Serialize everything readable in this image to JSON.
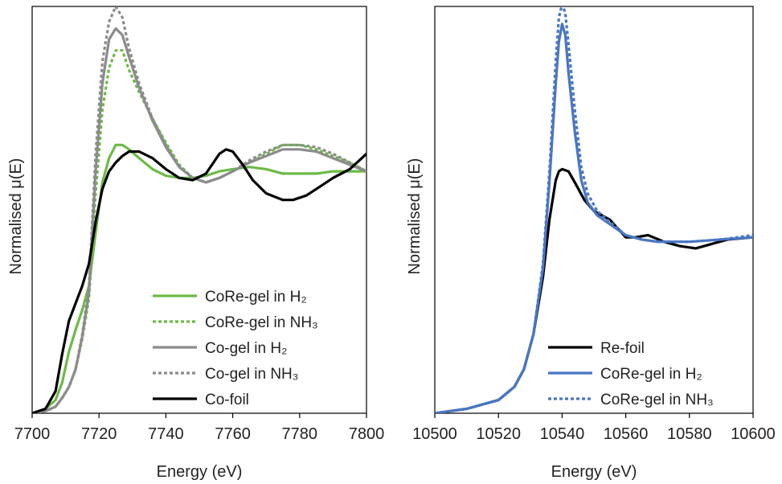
{
  "chart_data": [
    {
      "type": "line",
      "xlabel": "Energy (eV)",
      "ylabel": "Normalised μ(E)",
      "xlim": [
        7700,
        7800
      ],
      "ylim": [
        0,
        1.85
      ],
      "xticks": [
        "7700",
        "7720",
        "7740",
        "7760",
        "7780",
        "7800"
      ],
      "yticks_shown": false,
      "grid": false,
      "legend_position": "bottom-right",
      "series": [
        {
          "name": "CoRe-gel in H₂",
          "color": "#6cbb45",
          "style": "solid",
          "x": [
            7700,
            7704,
            7707,
            7709,
            7711,
            7713,
            7715,
            7717,
            7719,
            7721,
            7723,
            7725,
            7727,
            7729,
            7732,
            7736,
            7740,
            7744,
            7748,
            7752,
            7756,
            7760,
            7765,
            7770,
            7775,
            7780,
            7785,
            7790,
            7795,
            7800
          ],
          "y": [
            0.0,
            0.02,
            0.06,
            0.14,
            0.28,
            0.38,
            0.47,
            0.58,
            0.82,
            1.05,
            1.16,
            1.22,
            1.22,
            1.2,
            1.16,
            1.11,
            1.08,
            1.07,
            1.07,
            1.08,
            1.1,
            1.11,
            1.12,
            1.11,
            1.09,
            1.09,
            1.09,
            1.1,
            1.1,
            1.1
          ]
        },
        {
          "name": "CoRe-gel in NH₃",
          "color": "#6cbb45",
          "style": "dashed",
          "x": [
            7700,
            7704,
            7707,
            7709,
            7711,
            7713,
            7715,
            7717,
            7719,
            7721,
            7723,
            7725,
            7727,
            7729,
            7732,
            7736,
            7740,
            7744,
            7748,
            7752,
            7756,
            7760,
            7765,
            7770,
            7775,
            7780,
            7785,
            7790,
            7795,
            7800
          ],
          "y": [
            0.0,
            0.01,
            0.03,
            0.07,
            0.12,
            0.2,
            0.34,
            0.52,
            1.0,
            1.38,
            1.57,
            1.65,
            1.65,
            1.56,
            1.46,
            1.34,
            1.23,
            1.13,
            1.07,
            1.05,
            1.07,
            1.1,
            1.14,
            1.18,
            1.22,
            1.22,
            1.2,
            1.17,
            1.14,
            1.1
          ]
        },
        {
          "name": "Co-gel in H₂",
          "color": "#8c8c8c",
          "style": "solid",
          "x": [
            7700,
            7704,
            7707,
            7709,
            7711,
            7713,
            7715,
            7717,
            7719,
            7721,
            7723,
            7725,
            7727,
            7729,
            7732,
            7736,
            7740,
            7744,
            7748,
            7752,
            7756,
            7760,
            7765,
            7770,
            7775,
            7780,
            7785,
            7790,
            7795,
            7800
          ],
          "y": [
            0.0,
            0.01,
            0.03,
            0.07,
            0.12,
            0.2,
            0.35,
            0.55,
            1.1,
            1.5,
            1.7,
            1.75,
            1.72,
            1.62,
            1.48,
            1.33,
            1.21,
            1.12,
            1.07,
            1.05,
            1.07,
            1.1,
            1.14,
            1.17,
            1.2,
            1.2,
            1.19,
            1.16,
            1.13,
            1.1
          ]
        },
        {
          "name": "Co-gel in NH₃",
          "color": "#8c8c8c",
          "style": "dashed",
          "x": [
            7700,
            7704,
            7707,
            7709,
            7711,
            7713,
            7715,
            7717,
            7719,
            7721,
            7723,
            7725,
            7727,
            7729,
            7732,
            7736,
            7740,
            7744,
            7748,
            7752,
            7756,
            7760,
            7765,
            7770,
            7775,
            7780,
            7785,
            7790,
            7795,
            7800
          ],
          "y": [
            0.0,
            0.01,
            0.03,
            0.07,
            0.12,
            0.2,
            0.36,
            0.58,
            1.18,
            1.6,
            1.78,
            1.85,
            1.8,
            1.66,
            1.5,
            1.34,
            1.22,
            1.12,
            1.07,
            1.05,
            1.07,
            1.1,
            1.15,
            1.19,
            1.22,
            1.22,
            1.21,
            1.18,
            1.14,
            1.1
          ]
        },
        {
          "name": "Co-foil",
          "color": "#000000",
          "style": "solid",
          "x": [
            7700,
            7704,
            7707,
            7709,
            7711,
            7713,
            7715,
            7717,
            7719,
            7721,
            7723,
            7725,
            7727,
            7729,
            7732,
            7736,
            7740,
            7744,
            7748,
            7752,
            7756,
            7758,
            7760,
            7763,
            7766,
            7770,
            7775,
            7778,
            7782,
            7786,
            7790,
            7795,
            7800
          ],
          "y": [
            0.0,
            0.02,
            0.1,
            0.27,
            0.42,
            0.5,
            0.58,
            0.68,
            0.87,
            1.02,
            1.1,
            1.14,
            1.17,
            1.19,
            1.19,
            1.16,
            1.11,
            1.07,
            1.06,
            1.09,
            1.18,
            1.2,
            1.19,
            1.13,
            1.06,
            1.0,
            0.97,
            0.97,
            0.99,
            1.03,
            1.07,
            1.11,
            1.18
          ]
        }
      ]
    },
    {
      "type": "line",
      "xlabel": "Energy (eV)",
      "ylabel": "Normalised μ(E)",
      "xlim": [
        10500,
        10600
      ],
      "ylim": [
        0,
        1.85
      ],
      "xticks": [
        "10500",
        "10520",
        "10540",
        "10560",
        "10580",
        "10600"
      ],
      "yticks_shown": false,
      "grid": false,
      "legend_position": "bottom-right",
      "series": [
        {
          "name": "Re-foil",
          "color": "#000000",
          "style": "solid",
          "x": [
            10500,
            10510,
            10520,
            10525,
            10528,
            10531,
            10534,
            10536,
            10538,
            10539,
            10540,
            10542,
            10544,
            10547,
            10550,
            10555,
            10560,
            10563,
            10567,
            10572,
            10577,
            10582,
            10587,
            10592,
            10600
          ],
          "y": [
            0.0,
            0.02,
            0.06,
            0.12,
            0.2,
            0.36,
            0.62,
            0.88,
            1.06,
            1.1,
            1.11,
            1.1,
            1.05,
            0.97,
            0.92,
            0.88,
            0.8,
            0.8,
            0.81,
            0.78,
            0.76,
            0.75,
            0.77,
            0.79,
            0.8
          ]
        },
        {
          "name": "CoRe-gel in H₂",
          "color": "#4a76c4",
          "style": "solid",
          "x": [
            10500,
            10510,
            10520,
            10525,
            10528,
            10531,
            10534,
            10536,
            10538,
            10539,
            10540,
            10541,
            10542,
            10544,
            10546,
            10548,
            10551,
            10555,
            10560,
            10565,
            10570,
            10575,
            10580,
            10590,
            10600
          ],
          "y": [
            0.0,
            0.02,
            0.06,
            0.12,
            0.2,
            0.36,
            0.66,
            1.05,
            1.5,
            1.69,
            1.77,
            1.72,
            1.55,
            1.28,
            1.06,
            0.96,
            0.9,
            0.86,
            0.81,
            0.79,
            0.78,
            0.78,
            0.78,
            0.79,
            0.8
          ]
        },
        {
          "name": "CoRe-gel in NH₃",
          "color": "#4a76c4",
          "style": "dashed",
          "x": [
            10500,
            10510,
            10520,
            10525,
            10528,
            10531,
            10534,
            10536,
            10538,
            10539,
            10540,
            10541,
            10542,
            10544,
            10546,
            10548,
            10551,
            10555,
            10560,
            10565,
            10570,
            10575,
            10580,
            10590,
            10600
          ],
          "y": [
            0.0,
            0.02,
            0.06,
            0.12,
            0.2,
            0.36,
            0.68,
            1.1,
            1.6,
            1.8,
            1.86,
            1.82,
            1.68,
            1.38,
            1.12,
            1.0,
            0.92,
            0.87,
            0.81,
            0.79,
            0.78,
            0.78,
            0.78,
            0.79,
            0.81
          ]
        }
      ]
    }
  ]
}
